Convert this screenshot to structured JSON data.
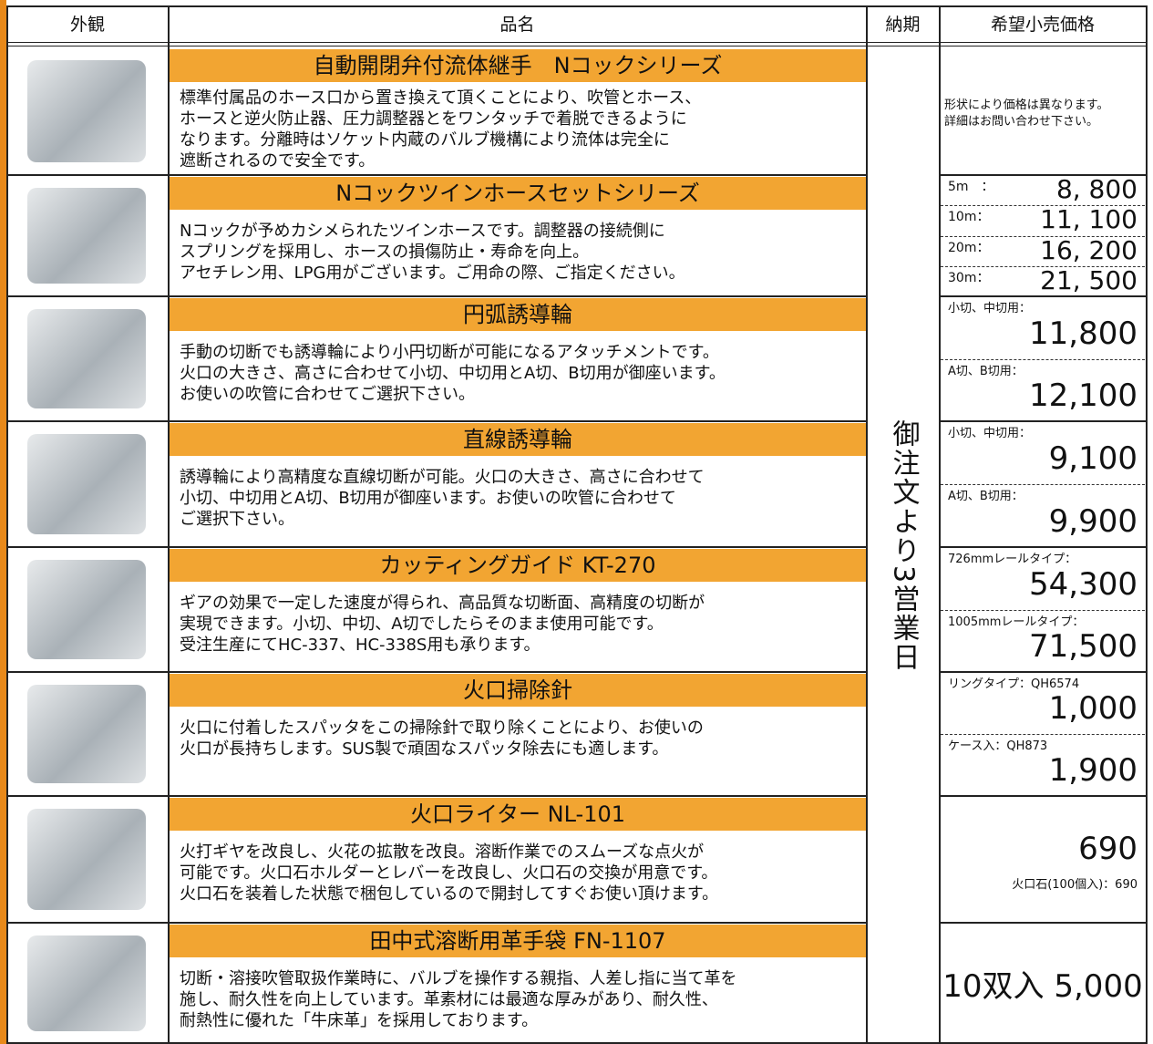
{
  "header": {
    "appearance": "外観",
    "name": "品名",
    "delivery": "納期",
    "price": "希望小売価格"
  },
  "delivery": "御注文より3営業日",
  "products": [
    {
      "title": "自動開閉弁付流体継手　Nコックシリーズ",
      "description": [
        "標準付属品のホース口から置き換えて頂くことにより、吹管とホース、",
        "ホースと逆火防止器、圧力調整器とをワンタッチで着脱できるように",
        "なります。分離時はソケット内蔵のバルブ機構により流体は完全に",
        "遮断されるので安全です。"
      ],
      "price_note": [
        "形状により価格は異なります。",
        "詳細はお問い合わせ下さい。"
      ]
    },
    {
      "title": "Nコックツインホースセットシリーズ",
      "description": [
        "Nコックが予めカシメられたツインホースです。調整器の接続側に",
        "スプリングを採用し、ホースの損傷防止・寿命を向上。",
        "アセチレン用、LPG用がございます。ご用命の際、ご指定ください。"
      ],
      "prices": [
        {
          "label": "5m　：",
          "value": "8, 800"
        },
        {
          "label": "10m：",
          "value": "11, 100"
        },
        {
          "label": "20m：",
          "value": "16, 200"
        },
        {
          "label": "30m：",
          "value": "21, 500"
        }
      ]
    },
    {
      "title": "円弧誘導輪",
      "description": [
        "手動の切断でも誘導輪により小円切断が可能になるアタッチメントです。",
        "火口の大きさ、高さに合わせて小切、中切用とA切、B切用が御座います。",
        "お使いの吹管に合わせてご選択下さい。"
      ],
      "prices": [
        {
          "label": "小切、中切用：",
          "value": "11,800"
        },
        {
          "label": "A切、B切用：",
          "value": "12,100"
        }
      ]
    },
    {
      "title": "直線誘導輪",
      "description": [
        "誘導輪により高精度な直線切断が可能。火口の大きさ、高さに合わせて",
        "小切、中切用とA切、B切用が御座います。お使いの吹管に合わせて",
        "ご選択下さい。"
      ],
      "prices": [
        {
          "label": "小切、中切用：",
          "value": "9,100"
        },
        {
          "label": "A切、B切用：",
          "value": "9,900"
        }
      ]
    },
    {
      "title": "カッティングガイド KT-270",
      "description": [
        "ギアの効果で一定した速度が得られ、高品質な切断面、高精度の切断が",
        "実現できます。小切、中切、A切でしたらそのまま使用可能です。",
        "受注生産にてHC-337、HC-338S用も承ります。"
      ],
      "prices": [
        {
          "label": "726mmレールタイプ：",
          "value": "54,300"
        },
        {
          "label": "1005mmレールタイプ：",
          "value": "71,500"
        }
      ]
    },
    {
      "title": "火口掃除針",
      "description": [
        "火口に付着したスパッタをこの掃除針で取り除くことにより、お使いの",
        "火口が長持ちします。SUS製で頑固なスパッタ除去にも適します。"
      ],
      "prices": [
        {
          "label": "リングタイプ：QH6574",
          "value": "1,000"
        },
        {
          "label": "ケース入：QH873",
          "value": "1,900"
        }
      ]
    },
    {
      "title": "火口ライター NL-101",
      "description": [
        "火打ギヤを改良し、火花の拡散を改良。溶断作業でのスムーズな点火が",
        "可能です。火口石ホルダーとレバーを改良し、火口石の交換が用意です。",
        "火口石を装着した状態で梱包しているので開封してすぐお使い頂けます。"
      ],
      "price_main": "690",
      "price_sub": "火口石(100個入)：690"
    },
    {
      "title": "田中式溶断用革手袋 FN-1107",
      "description": [
        "切断・溶接吹管取扱作業時に、バルブを操作する親指、人差し指に当て革を",
        "施し、耐久性を向上しています。革素材には最適な厚みがあり、耐久性、",
        "耐熱性に優れた「牛床革」を採用しております。"
      ],
      "price_center": "10双入 5,000"
    }
  ]
}
